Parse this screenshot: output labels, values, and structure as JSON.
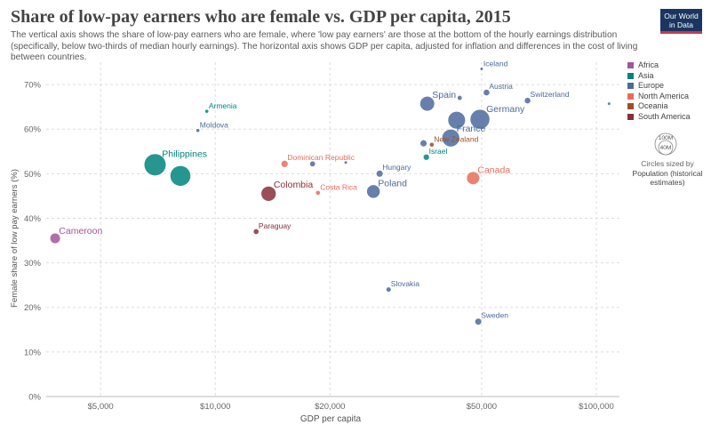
{
  "header": {
    "title": "Share of low-pay earners who are female vs. GDP per capita, 2015",
    "subtitle": "The vertical axis shows the share of low-pay earners who are female, where 'low pay earners' are those at the bottom of the hourly earnings distribution (specifically, below two-thirds of median hourly earnings). The horizontal axis shows GDP per capita, adjusted for inflation and differences in the cost of living between countries.",
    "logo_line1": "Our World",
    "logo_line2": "in Data",
    "logo_colors": {
      "background": "#1a3660",
      "bar": "#c43a4a"
    }
  },
  "legend": {
    "items": [
      {
        "label": "Africa",
        "color": "#a2559c"
      },
      {
        "label": "Asia",
        "color": "#00847e"
      },
      {
        "label": "Europe",
        "color": "#4c6a9c"
      },
      {
        "label": "North America",
        "color": "#e56e5a"
      },
      {
        "label": "Oceania",
        "color": "#9a5129"
      },
      {
        "label": "South America",
        "color": "#883039"
      }
    ],
    "size_key_large": "100M",
    "size_key_small": "40M",
    "size_note": "Circles sized by",
    "size_variable": "Population (historical estimates)"
  },
  "chart_data": {
    "type": "scatter",
    "title": "Share of low-pay earners who are female vs. GDP per capita, 2015",
    "xlabel": "GDP per capita",
    "ylabel": "Female share of low pay earners (%)",
    "x_scale": "log",
    "xlim": [
      3600,
      115000
    ],
    "ylim": [
      0,
      75
    ],
    "x_ticks": [
      5000,
      10000,
      20000,
      50000,
      100000
    ],
    "x_tick_labels": [
      "$5,000",
      "$10,000",
      "$20,000",
      "$50,000",
      "$100,000"
    ],
    "y_ticks": [
      0,
      10,
      20,
      30,
      40,
      50,
      60,
      70
    ],
    "y_tick_labels": [
      "0%",
      "10%",
      "20%",
      "30%",
      "40%",
      "50%",
      "60%",
      "70%"
    ],
    "grid": true,
    "size_variable": "Population (historical estimates)",
    "points": [
      {
        "name": "Cameroon",
        "x": 3800,
        "y": 35.5,
        "region": "Africa",
        "population_m": 23,
        "label": "Cameroon",
        "color": "#a2559c"
      },
      {
        "name": "Philippines",
        "x": 6950,
        "y": 52.0,
        "region": "Asia",
        "population_m": 102,
        "label": "Philippines",
        "color": "#00847e"
      },
      {
        "name": "",
        "x": 8100,
        "y": 49.5,
        "region": "Asia",
        "population_m": 90,
        "label": "",
        "color": "#00847e"
      },
      {
        "name": "Armenia",
        "x": 9500,
        "y": 64.0,
        "region": "Asia",
        "population_m": 3,
        "label": "Armenia",
        "color": "#00847e"
      },
      {
        "name": "Moldova",
        "x": 9000,
        "y": 59.7,
        "region": "Europe",
        "population_m": 3,
        "label": "Moldova",
        "color": "#4c6a9c"
      },
      {
        "name": "Paraguay",
        "x": 12800,
        "y": 37.0,
        "region": "South America",
        "population_m": 6.6,
        "label": "Paraguay",
        "color": "#883039"
      },
      {
        "name": "Colombia",
        "x": 13800,
        "y": 45.5,
        "region": "South America",
        "population_m": 48,
        "label": "Colombia",
        "color": "#883039"
      },
      {
        "name": "Dominican Republic",
        "x": 15200,
        "y": 52.2,
        "region": "North America",
        "population_m": 10.5,
        "label": "Dominican Republic",
        "color": "#e56e5a"
      },
      {
        "name": "",
        "x": 18000,
        "y": 52.2,
        "region": "Europe",
        "population_m": 7,
        "label": "",
        "color": "#4c6a9c"
      },
      {
        "name": "Costa Rica",
        "x": 18600,
        "y": 45.7,
        "region": "North America",
        "population_m": 4.8,
        "label": "Costa Rica",
        "color": "#e56e5a"
      },
      {
        "name": "",
        "x": 22000,
        "y": 52.5,
        "region": "Europe",
        "population_m": 2,
        "label": "",
        "color": "#4c6a9c"
      },
      {
        "name": "Poland",
        "x": 26000,
        "y": 46.0,
        "region": "Europe",
        "population_m": 38,
        "label": "Poland",
        "color": "#4c6a9c"
      },
      {
        "name": "Hungary",
        "x": 27000,
        "y": 50.0,
        "region": "Europe",
        "population_m": 10,
        "label": "Hungary",
        "color": "#4c6a9c"
      },
      {
        "name": "Slovakia",
        "x": 28500,
        "y": 24.0,
        "region": "Europe",
        "population_m": 5.4,
        "label": "Slovakia",
        "color": "#4c6a9c"
      },
      {
        "name": "Spain",
        "x": 36000,
        "y": 65.7,
        "region": "Europe",
        "population_m": 46,
        "label": "Spain",
        "color": "#4c6a9c"
      },
      {
        "name": "",
        "x": 35200,
        "y": 56.8,
        "region": "Europe",
        "population_m": 10,
        "label": "",
        "color": "#4c6a9c"
      },
      {
        "name": "Israel",
        "x": 35800,
        "y": 53.7,
        "region": "Asia",
        "population_m": 8,
        "label": "Israel",
        "color": "#00847e"
      },
      {
        "name": "New Zealand",
        "x": 37000,
        "y": 56.5,
        "region": "Oceania",
        "population_m": 4.6,
        "label": "New Zealand",
        "color": "#9a5129"
      },
      {
        "name": "France",
        "x": 41500,
        "y": 58.0,
        "region": "Europe",
        "population_m": 66,
        "label": "France",
        "color": "#4c6a9c"
      },
      {
        "name": "",
        "x": 43000,
        "y": 62.0,
        "region": "Europe",
        "population_m": 65,
        "label": "",
        "color": "#4c6a9c"
      },
      {
        "name": "",
        "x": 43800,
        "y": 67.0,
        "region": "Europe",
        "population_m": 5,
        "label": "",
        "color": "#4c6a9c"
      },
      {
        "name": "Canada",
        "x": 47500,
        "y": 49.0,
        "region": "North America",
        "population_m": 36,
        "label": "Canada",
        "color": "#e56e5a"
      },
      {
        "name": "Germany",
        "x": 49500,
        "y": 62.2,
        "region": "Europe",
        "population_m": 82,
        "label": "Germany",
        "color": "#4c6a9c"
      },
      {
        "name": "Iceland",
        "x": 50000,
        "y": 73.5,
        "region": "Europe",
        "population_m": 0.33,
        "label": "Iceland",
        "color": "#4c6a9c"
      },
      {
        "name": "Austria",
        "x": 51500,
        "y": 68.2,
        "region": "Europe",
        "population_m": 8.7,
        "label": "Austria",
        "color": "#4c6a9c"
      },
      {
        "name": "Sweden",
        "x": 49000,
        "y": 16.8,
        "region": "Europe",
        "population_m": 9.8,
        "label": "Sweden",
        "color": "#4c6a9c"
      },
      {
        "name": "Switzerland",
        "x": 66000,
        "y": 66.4,
        "region": "Europe",
        "population_m": 8.3,
        "label": "Switzerland",
        "color": "#4c6a9c"
      },
      {
        "name": "",
        "x": 108000,
        "y": 65.7,
        "region": "Europe",
        "population_m": 0.6,
        "label": "",
        "color": "#4c6a9c"
      }
    ]
  }
}
